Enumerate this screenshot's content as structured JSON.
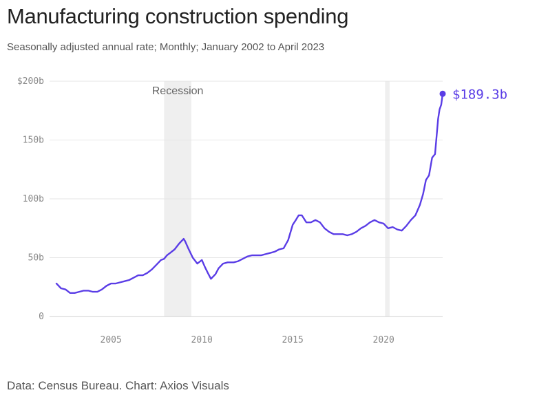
{
  "header": {
    "title": "Manufacturing construction spending",
    "subtitle": "Seasonally adjusted annual rate; Monthly; January 2002 to April 2023"
  },
  "footer": {
    "source": "Data: Census Bureau. Chart: Axios Visuals"
  },
  "colors": {
    "line": "#5a3de6",
    "grid": "#e6e6e6",
    "recession_band": "#efefef"
  },
  "chart_data": {
    "type": "line",
    "title": "Manufacturing construction spending",
    "subtitle": "Seasonally adjusted annual rate; Monthly; January 2002 to April 2023",
    "xlabel": "",
    "ylabel": "",
    "xlim": [
      2002.0,
      2023.25
    ],
    "ylim": [
      0,
      200
    ],
    "y_ticks": [
      0,
      50,
      100,
      150,
      200
    ],
    "y_tick_labels": [
      "0",
      "50b",
      "100b",
      "150b",
      "$200b"
    ],
    "x_ticks": [
      2005,
      2010,
      2015,
      2020
    ],
    "x_tick_labels": [
      "2005",
      "2010",
      "2015",
      "2020"
    ],
    "grid": true,
    "recessions": [
      {
        "start": 2007.92,
        "end": 2009.42,
        "label": "Recession"
      },
      {
        "start": 2020.08,
        "end": 2020.33,
        "label": ""
      }
    ],
    "end_label": "$189.3b",
    "series": [
      {
        "name": "",
        "x": [
          2002.0,
          2002.25,
          2002.5,
          2002.75,
          2003.0,
          2003.25,
          2003.5,
          2003.75,
          2004.0,
          2004.25,
          2004.5,
          2004.75,
          2005.0,
          2005.25,
          2005.5,
          2005.75,
          2006.0,
          2006.25,
          2006.5,
          2006.75,
          2007.0,
          2007.25,
          2007.5,
          2007.75,
          2007.92,
          2008.08,
          2008.25,
          2008.5,
          2008.75,
          2009.0,
          2009.08,
          2009.25,
          2009.5,
          2009.75,
          2010.0,
          2010.17,
          2010.33,
          2010.5,
          2010.75,
          2010.92,
          2011.17,
          2011.42,
          2011.75,
          2012.0,
          2012.25,
          2012.5,
          2012.75,
          2013.0,
          2013.25,
          2013.5,
          2013.75,
          2014.0,
          2014.25,
          2014.5,
          2014.75,
          2015.0,
          2015.17,
          2015.33,
          2015.5,
          2015.75,
          2016.0,
          2016.25,
          2016.5,
          2016.75,
          2017.0,
          2017.25,
          2017.5,
          2017.75,
          2018.0,
          2018.25,
          2018.5,
          2018.75,
          2019.0,
          2019.25,
          2019.5,
          2019.75,
          2020.0,
          2020.25,
          2020.5,
          2020.75,
          2021.0,
          2021.25,
          2021.5,
          2021.75,
          2022.0,
          2022.17,
          2022.33,
          2022.5,
          2022.67,
          2022.83,
          2023.0,
          2023.08,
          2023.17,
          2023.25
        ],
        "y": [
          28,
          24,
          23,
          20,
          20,
          21,
          22,
          22,
          21,
          21,
          23,
          26,
          28,
          28,
          29,
          30,
          31,
          33,
          35,
          35,
          37,
          40,
          44,
          48,
          49,
          52,
          54,
          57,
          62,
          66,
          64,
          58,
          50,
          45,
          48,
          42,
          37,
          32,
          36,
          41,
          45,
          46,
          46,
          47,
          49,
          51,
          52,
          52,
          52,
          53,
          54,
          55,
          57,
          58,
          65,
          78,
          82,
          86,
          86,
          80,
          80,
          82,
          80,
          75,
          72,
          70,
          70,
          70,
          69,
          70,
          72,
          75,
          77,
          80,
          82,
          80,
          79,
          75,
          76,
          74,
          73,
          77,
          82,
          86,
          95,
          104,
          116,
          120,
          135,
          138,
          168,
          176,
          180,
          189.3
        ]
      }
    ]
  },
  "axis_labels": {
    "y": [
      "0",
      "50b",
      "100b",
      "150b",
      "$200b"
    ],
    "x": [
      "2005",
      "2010",
      "2015",
      "2020"
    ]
  }
}
